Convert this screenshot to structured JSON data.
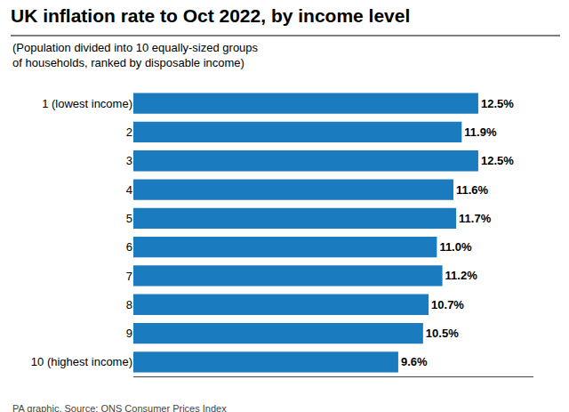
{
  "chart_data": {
    "type": "bar",
    "orientation": "horizontal",
    "title": "UK inflation rate to Oct 2022, by income level",
    "subtitle": [
      "(Population divided into 10 equally-sized groups",
      "of households, ranked by disposable income)"
    ],
    "annotations": [
      "PA graphic. Source: ONS Consumer Prices Index"
    ],
    "categories": [
      "1 (lowest income)",
      "2",
      "3",
      "4",
      "5",
      "6",
      "7",
      "8",
      "9",
      "10 (highest income)"
    ],
    "values": [
      12.5,
      11.9,
      12.5,
      11.6,
      11.7,
      11.0,
      11.2,
      10.7,
      10.5,
      9.6
    ],
    "value_labels": [
      "12.5%",
      "11.9%",
      "12.5%",
      "11.6%",
      "11.7%",
      "11.0%",
      "11.2%",
      "10.7%",
      "10.5%",
      "9.6%"
    ],
    "data_labels": true,
    "color": "#1a7bbf",
    "xlim": [
      0,
      14.5
    ],
    "tick_labels": "y",
    "grid": false
  }
}
